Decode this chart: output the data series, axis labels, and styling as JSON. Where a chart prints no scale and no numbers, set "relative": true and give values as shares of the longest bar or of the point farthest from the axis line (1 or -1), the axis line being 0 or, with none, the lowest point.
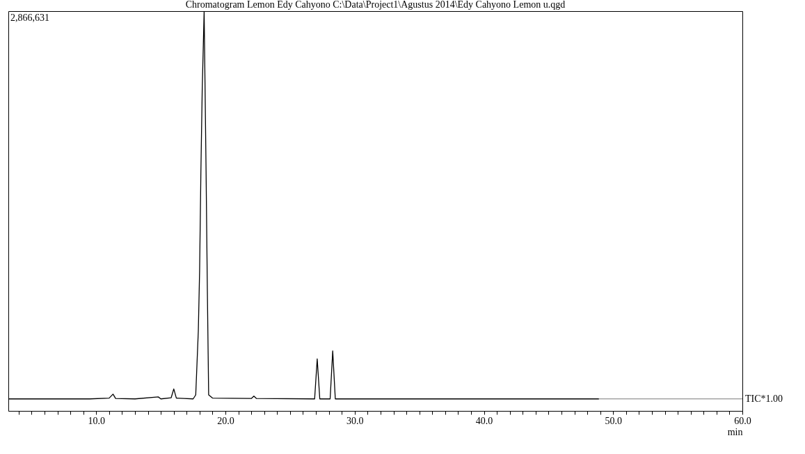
{
  "chart_data": {
    "type": "line",
    "title": "Chromatogram Lemon Edy Cahyono C:\\Data\\Project1\\Agustus 2014\\Edy Cahyono Lemon u.qgd",
    "xlabel": "min",
    "relative": true,
    "grid": false,
    "marker": "none",
    "line_style": "solid",
    "xlim": [
      3.2,
      60
    ],
    "xticks": [
      {
        "value": 4,
        "label": null
      },
      {
        "value": 5,
        "label": null
      },
      {
        "value": 6,
        "label": null
      },
      {
        "value": 7,
        "label": null
      },
      {
        "value": 8,
        "label": null
      },
      {
        "value": 9,
        "label": null
      },
      {
        "value": 10,
        "label": "10.0"
      },
      {
        "value": 11,
        "label": null
      },
      {
        "value": 12,
        "label": null
      },
      {
        "value": 13,
        "label": null
      },
      {
        "value": 14,
        "label": null
      },
      {
        "value": 15,
        "label": null
      },
      {
        "value": 16,
        "label": null
      },
      {
        "value": 17,
        "label": null
      },
      {
        "value": 18,
        "label": null
      },
      {
        "value": 19,
        "label": null
      },
      {
        "value": 20,
        "label": "20.0"
      },
      {
        "value": 21,
        "label": null
      },
      {
        "value": 22,
        "label": null
      },
      {
        "value": 23,
        "label": null
      },
      {
        "value": 24,
        "label": null
      },
      {
        "value": 25,
        "label": null
      },
      {
        "value": 26,
        "label": null
      },
      {
        "value": 27,
        "label": null
      },
      {
        "value": 28,
        "label": null
      },
      {
        "value": 29,
        "label": null
      },
      {
        "value": 30,
        "label": "30.0"
      },
      {
        "value": 31,
        "label": null
      },
      {
        "value": 32,
        "label": null
      },
      {
        "value": 33,
        "label": null
      },
      {
        "value": 34,
        "label": null
      },
      {
        "value": 35,
        "label": null
      },
      {
        "value": 36,
        "label": null
      },
      {
        "value": 37,
        "label": null
      },
      {
        "value": 38,
        "label": null
      },
      {
        "value": 39,
        "label": null
      },
      {
        "value": 40,
        "label": "40.0"
      },
      {
        "value": 41,
        "label": null
      },
      {
        "value": 42,
        "label": null
      },
      {
        "value": 43,
        "label": null
      },
      {
        "value": 44,
        "label": null
      },
      {
        "value": 45,
        "label": null
      },
      {
        "value": 46,
        "label": null
      },
      {
        "value": 47,
        "label": null
      },
      {
        "value": 48,
        "label": null
      },
      {
        "value": 49,
        "label": null
      },
      {
        "value": 50,
        "label": "50.0"
      },
      {
        "value": 51,
        "label": null
      },
      {
        "value": 52,
        "label": null
      },
      {
        "value": 53,
        "label": null
      },
      {
        "value": 54,
        "label": null
      },
      {
        "value": 55,
        "label": null
      },
      {
        "value": 56,
        "label": null
      },
      {
        "value": 57,
        "label": null
      },
      {
        "value": 58,
        "label": null
      },
      {
        "value": 59,
        "label": null
      },
      {
        "value": 60,
        "label": "60.0"
      }
    ],
    "x": [
      3.2,
      9.5,
      11.0,
      11.3,
      11.5,
      13.0,
      14.8,
      15.0,
      15.8,
      16.0,
      16.2,
      16.8,
      17.5,
      17.7,
      17.9,
      18.0,
      18.1,
      18.2,
      18.35,
      18.5,
      18.6,
      18.7,
      19.0,
      22.0,
      22.2,
      22.4,
      26.9,
      27.1,
      27.3,
      28.1,
      28.3,
      28.5,
      33.7,
      34.0,
      48.9
    ],
    "series": [
      {
        "color": "#000000",
        "values": [
          0.03,
          0.03,
          0.032,
          0.042,
          0.031,
          0.03,
          0.035,
          0.03,
          0.033,
          0.055,
          0.032,
          0.031,
          0.03,
          0.04,
          0.2,
          0.35,
          0.6,
          0.8,
          1.0,
          0.6,
          0.3,
          0.04,
          0.032,
          0.031,
          0.037,
          0.031,
          0.03,
          0.13,
          0.03,
          0.03,
          0.15,
          0.03,
          0.03,
          0.03,
          0.03
        ]
      }
    ],
    "annotations": [
      "2,866,631",
      {
        "text": "TIC*1.00",
        "x": 48.9,
        "y": 0.03
      }
    ]
  }
}
